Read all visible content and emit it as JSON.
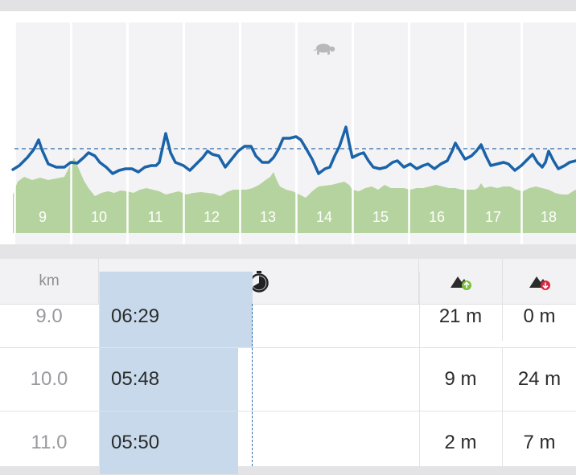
{
  "chart": {
    "column_labels": [
      "9",
      "10",
      "11",
      "12",
      "13",
      "14",
      "15",
      "16",
      "17",
      "18"
    ],
    "pace_line_color": "#1a63a8",
    "elevation_fill_color": "#b5d39e",
    "slow_marker_icon": "turtle-icon"
  },
  "table": {
    "header": {
      "km_label": "km",
      "time_icon": "stopwatch-icon",
      "ascent_icon": "mountain-ascent-icon",
      "descent_icon": "mountain-descent-icon"
    },
    "rows": [
      {
        "km": "9.0",
        "time": "06:29",
        "ascent": "21 m",
        "descent": "0 m",
        "pace_fraction": 0.48
      },
      {
        "km": "10.0",
        "time": "05:48",
        "ascent": "9 m",
        "descent": "24 m",
        "pace_fraction": 0.43
      },
      {
        "km": "11.0",
        "time": "05:50",
        "ascent": "2 m",
        "descent": "7 m",
        "pace_fraction": 0.43
      }
    ]
  }
}
